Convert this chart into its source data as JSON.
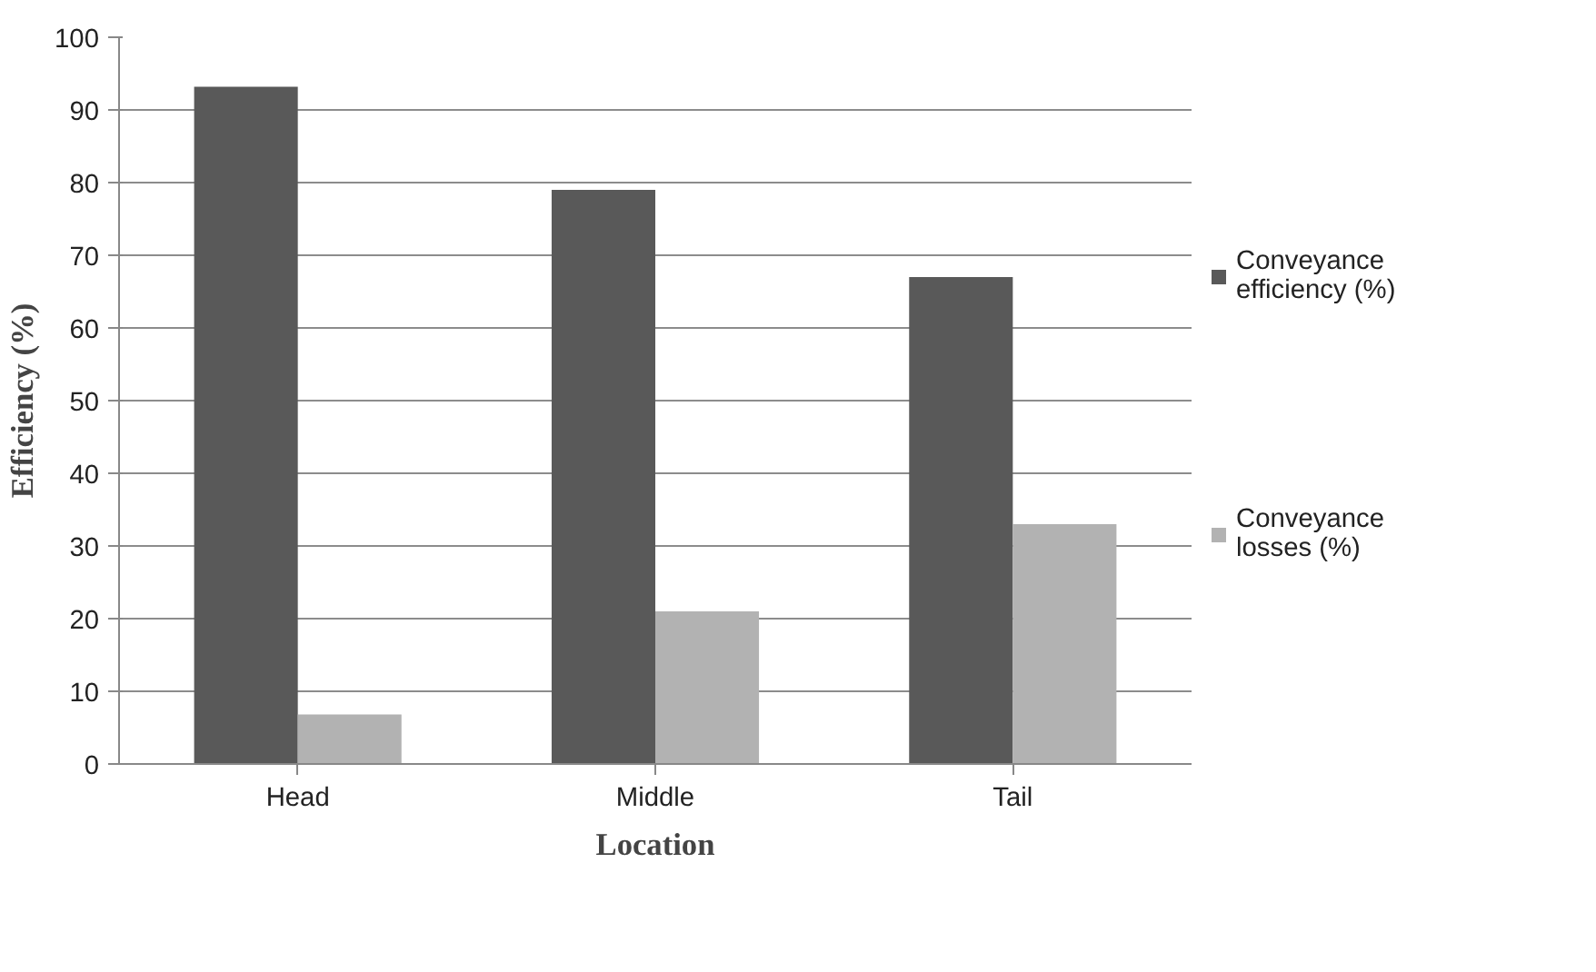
{
  "chart_data": {
    "type": "bar",
    "xlabel": "Location",
    "ylabel": "Efficiency (%)",
    "categories": [
      "Head",
      "Middle",
      "Tail"
    ],
    "series": [
      {
        "name": "Conveyance efficiency (%)",
        "color": "#595959",
        "values": [
          93.2,
          79,
          67
        ]
      },
      {
        "name": "Conveyance losses (%)",
        "color": "#b2b2b2",
        "values": [
          6.8,
          21,
          33
        ]
      }
    ],
    "ylim": [
      0,
      100
    ],
    "yticks": [
      0,
      10,
      20,
      30,
      40,
      50,
      60,
      70,
      80,
      90,
      100
    ],
    "grid": "y",
    "legend": "right"
  }
}
